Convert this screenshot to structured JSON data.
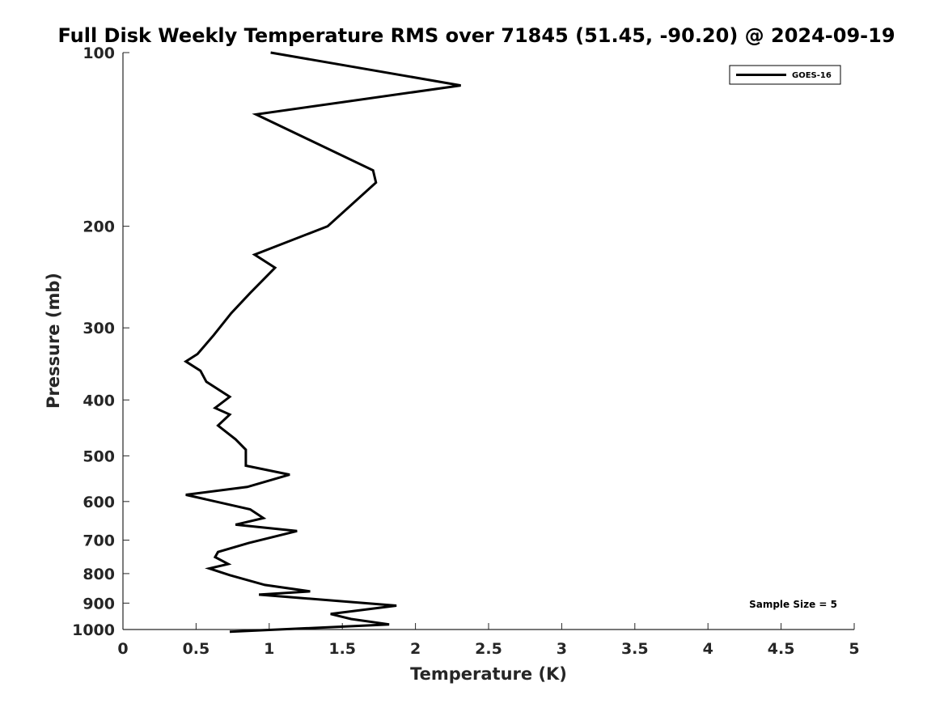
{
  "chart_data": {
    "type": "line",
    "title": "Full Disk Weekly Temperature RMS over 71845 (51.45, -90.20) @ 2024-09-19",
    "xlabel": "Temperature (K)",
    "ylabel": "Pressure (mb)",
    "xlim": [
      0,
      5
    ],
    "ylim": [
      100,
      1000
    ],
    "y_scale": "log",
    "y_reversed": true,
    "x_ticks": [
      "0",
      "0.5",
      "1",
      "1.5",
      "2",
      "2.5",
      "3",
      "3.5",
      "4",
      "4.5",
      "5"
    ],
    "y_ticks": [
      "100",
      "200",
      "300",
      "400",
      "500",
      "600",
      "700",
      "800",
      "900",
      "1000"
    ],
    "grid": false,
    "legend_position": "top-right",
    "series": [
      {
        "name": "GOES-16",
        "color": "#000000",
        "x": [
          1.01,
          2.31,
          0.91,
          1.71,
          1.73,
          1.4,
          0.9,
          1.04,
          0.87,
          0.74,
          0.62,
          0.51,
          0.43,
          0.53,
          0.57,
          0.73,
          0.63,
          0.73,
          0.65,
          0.77,
          0.84,
          0.84,
          1.14,
          0.85,
          0.43,
          0.87,
          0.96,
          0.77,
          1.19,
          0.86,
          0.65,
          0.63,
          0.72,
          0.59,
          0.73,
          0.97,
          1.28,
          0.93,
          1.87,
          1.42,
          1.56,
          1.82,
          0.73
        ],
        "y": [
          100,
          114,
          128,
          160,
          168,
          200,
          224,
          236,
          261,
          283,
          309,
          333,
          343,
          356,
          372,
          395,
          413,
          424,
          443,
          468,
          488,
          520,
          539,
          566,
          584,
          619,
          641,
          658,
          675,
          708,
          734,
          749,
          770,
          784,
          805,
          837,
          859,
          870,
          909,
          940,
          959,
          980,
          1009
        ]
      }
    ],
    "annotation": "Sample Size = 5"
  }
}
